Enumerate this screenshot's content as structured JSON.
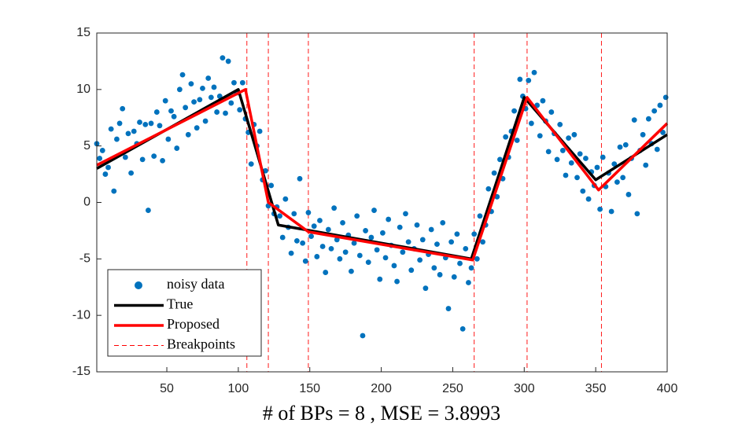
{
  "chart_data": {
    "type": "scatter",
    "xlabel": "# of BPs = 8 , MSE = 3.8993",
    "xlim": [
      1,
      400
    ],
    "ylim": [
      -15,
      15
    ],
    "xticks": [
      50,
      100,
      150,
      200,
      250,
      300,
      350,
      400
    ],
    "yticks": [
      -15,
      -10,
      -5,
      0,
      5,
      10,
      15
    ],
    "grid": false,
    "legend": "southwest",
    "series": [
      {
        "name": "noisy data",
        "color": "#0072bd",
        "mode": "markers",
        "x": [
          1,
          3,
          5,
          7,
          9,
          11,
          13,
          15,
          17,
          19,
          21,
          23,
          25,
          27,
          29,
          31,
          33,
          35,
          37,
          39,
          41,
          43,
          45,
          47,
          49,
          51,
          53,
          55,
          57,
          59,
          61,
          63,
          65,
          67,
          69,
          71,
          73,
          75,
          77,
          79,
          81,
          83,
          85,
          87,
          89,
          91,
          93,
          95,
          97,
          99,
          101,
          103,
          105,
          107,
          109,
          111,
          113,
          115,
          117,
          119,
          121,
          123,
          125,
          127,
          129,
          131,
          133,
          135,
          137,
          139,
          141,
          143,
          145,
          147,
          149,
          151,
          153,
          155,
          157,
          159,
          161,
          163,
          165,
          167,
          169,
          171,
          173,
          175,
          177,
          179,
          181,
          183,
          185,
          187,
          189,
          191,
          193,
          195,
          197,
          199,
          201,
          203,
          205,
          207,
          209,
          211,
          213,
          215,
          217,
          219,
          221,
          223,
          225,
          227,
          229,
          231,
          233,
          235,
          237,
          239,
          241,
          243,
          245,
          247,
          249,
          251,
          253,
          255,
          257,
          259,
          261,
          263,
          265,
          267,
          269,
          271,
          273,
          275,
          277,
          279,
          281,
          283,
          285,
          287,
          289,
          291,
          293,
          295,
          297,
          299,
          301,
          303,
          305,
          307,
          309,
          311,
          313,
          315,
          317,
          319,
          321,
          323,
          325,
          327,
          329,
          331,
          333,
          335,
          337,
          339,
          341,
          343,
          345,
          347,
          349,
          351,
          353,
          355,
          357,
          359,
          361,
          363,
          365,
          367,
          369,
          371,
          373,
          375,
          377,
          379,
          381,
          383,
          385,
          387,
          389,
          391,
          393,
          395,
          397,
          399
        ],
        "values": [
          5.2,
          3.9,
          4.6,
          2.5,
          3.1,
          6.5,
          1.0,
          5.6,
          7.0,
          8.3,
          4.0,
          6.1,
          2.6,
          6.3,
          5.2,
          7.1,
          3.8,
          6.9,
          -0.7,
          7.0,
          4.1,
          8.0,
          6.8,
          3.7,
          9.0,
          5.6,
          8.1,
          7.6,
          4.8,
          10.0,
          11.3,
          8.4,
          6.0,
          10.5,
          8.9,
          6.6,
          9.1,
          10.1,
          7.2,
          11.0,
          9.3,
          10.2,
          8.0,
          9.4,
          12.8,
          7.9,
          12.5,
          8.8,
          10.6,
          9.7,
          8.2,
          10.6,
          7.4,
          6.2,
          3.4,
          6.9,
          5.0,
          6.3,
          2.0,
          2.8,
          -0.3,
          1.5,
          -1.0,
          -0.4,
          -1.2,
          -3.1,
          0.3,
          -2.2,
          -4.5,
          -1.0,
          -3.4,
          2.1,
          -3.6,
          -5.2,
          -0.9,
          -3.0,
          -2.1,
          -4.8,
          -1.6,
          -3.9,
          -6.2,
          -2.4,
          -4.1,
          -0.5,
          -3.3,
          -5.0,
          -1.8,
          -4.4,
          -2.9,
          -6.1,
          -3.6,
          -1.2,
          -4.7,
          -11.8,
          -2.5,
          -5.3,
          -3.1,
          -0.7,
          -4.2,
          -6.8,
          -2.7,
          -4.9,
          -1.5,
          -3.8,
          -5.6,
          -7.0,
          -2.2,
          -4.4,
          -1.0,
          -3.5,
          -6.0,
          -4.1,
          -2.0,
          -5.1,
          -3.3,
          -7.6,
          -4.6,
          -2.4,
          -5.8,
          -3.7,
          -6.4,
          -1.8,
          -4.9,
          -9.4,
          -3.5,
          -6.6,
          -2.8,
          -5.4,
          -11.2,
          -4.1,
          -7.1,
          -5.8,
          -2.8,
          -5.0,
          -1.2,
          -3.5,
          -2.0,
          1.2,
          -0.8,
          2.6,
          0.5,
          3.8,
          2.1,
          5.8,
          4.0,
          6.3,
          8.1,
          5.5,
          10.9,
          9.4,
          8.3,
          10.8,
          7.0,
          11.5,
          8.6,
          5.9,
          9.0,
          7.2,
          4.5,
          8.0,
          6.1,
          3.8,
          6.9,
          4.6,
          2.4,
          5.7,
          3.5,
          6.0,
          2.2,
          4.3,
          1.0,
          3.9,
          0.3,
          2.7,
          1.5,
          3.1,
          -0.6,
          4.0,
          1.4,
          2.6,
          -0.8,
          3.4,
          1.8,
          4.9,
          2.2,
          5.1,
          0.7,
          3.9,
          7.3,
          -1.0,
          4.6,
          6.0,
          3.3,
          7.4,
          5.2,
          8.1,
          4.7,
          8.6,
          6.2,
          9.3
        ]
      },
      {
        "name": "True",
        "color": "#000000",
        "mode": "line",
        "x": [
          1,
          100,
          128,
          263,
          300,
          350,
          400
        ],
        "values": [
          3,
          10,
          -2,
          -5,
          9.3,
          2,
          6
        ]
      },
      {
        "name": "Proposed",
        "color": "#ff0000",
        "mode": "line",
        "x": [
          1,
          105,
          121,
          149,
          264,
          302,
          352,
          400
        ],
        "values": [
          3.3,
          10,
          0,
          -2.6,
          -5.1,
          9.3,
          1.1,
          7
        ]
      }
    ],
    "breakpoints": {
      "name": "Breakpoints",
      "color": "#ff0000",
      "x": [
        106,
        121,
        149,
        265,
        302,
        354,
        400
      ]
    }
  }
}
